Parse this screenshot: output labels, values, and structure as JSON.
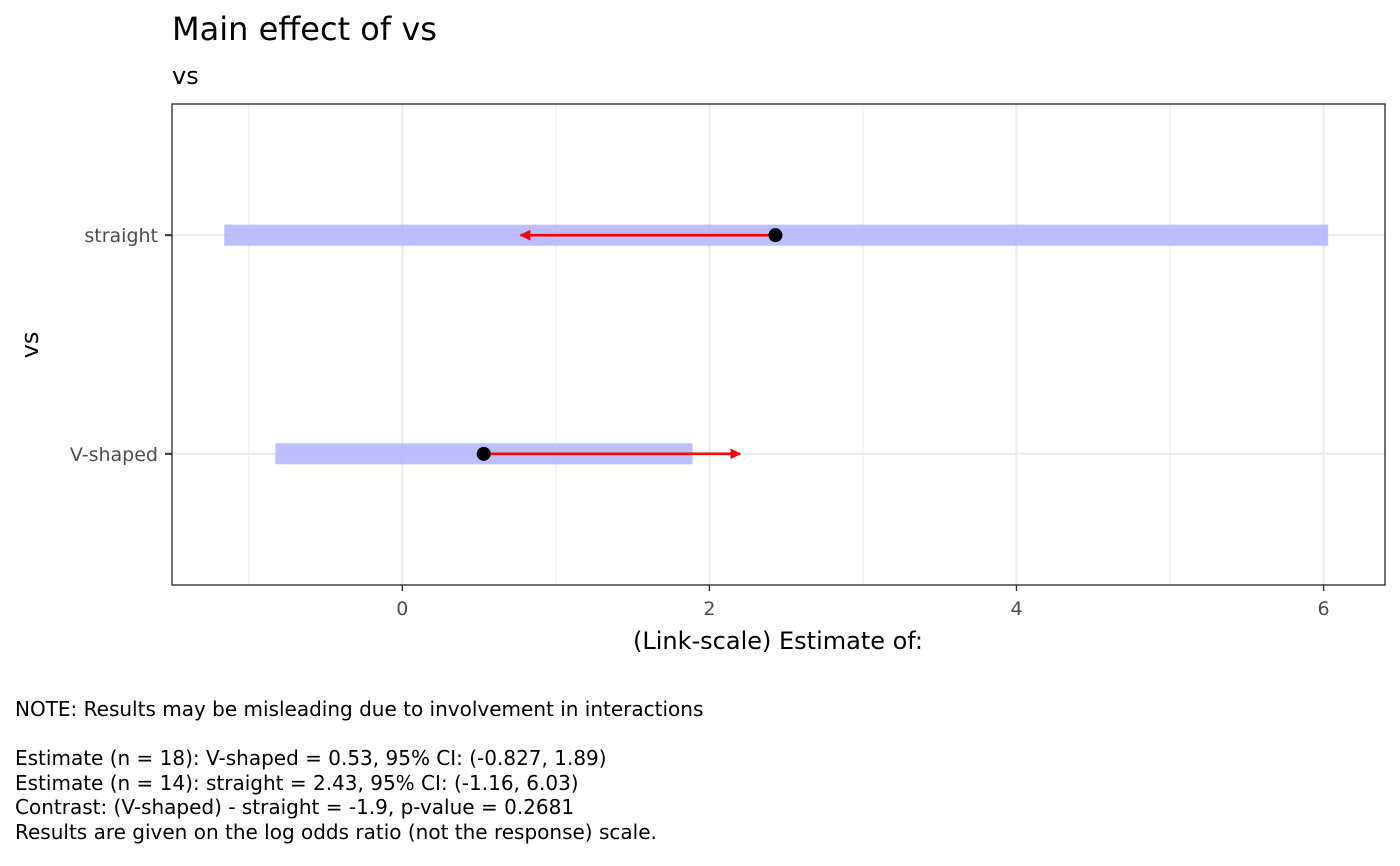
{
  "chart_data": {
    "type": "interval",
    "title": "Main effect of vs",
    "subtitle": "vs",
    "xlabel": "(Link-scale) Estimate of:",
    "ylabel": "vs",
    "xlim": [
      -1.5,
      6.4
    ],
    "xticks": [
      0,
      2,
      4,
      6
    ],
    "categories": [
      "V-shaped",
      "straight"
    ],
    "estimates": [
      {
        "label": "V-shaped",
        "estimate": 0.53,
        "ci_low": -0.827,
        "ci_high": 1.89,
        "arrow_to": 2.2
      },
      {
        "label": "straight",
        "estimate": 2.43,
        "ci_low": -1.16,
        "ci_high": 6.03,
        "arrow_to": 0.77
      }
    ],
    "grid": true,
    "colors": {
      "ci_band": "#b3b3ff",
      "arrow": "#ff0000",
      "point": "#000000",
      "grid_major": "#ebebeb",
      "panel_border": "#333333"
    }
  },
  "notes": {
    "warning": "NOTE: Results may be misleading due to involvement in interactions",
    "lines": [
      "Estimate (n = 18): V-shaped = 0.53, 95% CI: (-0.827, 1.89)",
      "Estimate (n = 14): straight = 2.43, 95% CI: (-1.16, 6.03)",
      "Contrast: (V-shaped) - straight = -1.9, p-value = 0.2681",
      "Results are given on the log odds ratio (not the response) scale."
    ]
  }
}
